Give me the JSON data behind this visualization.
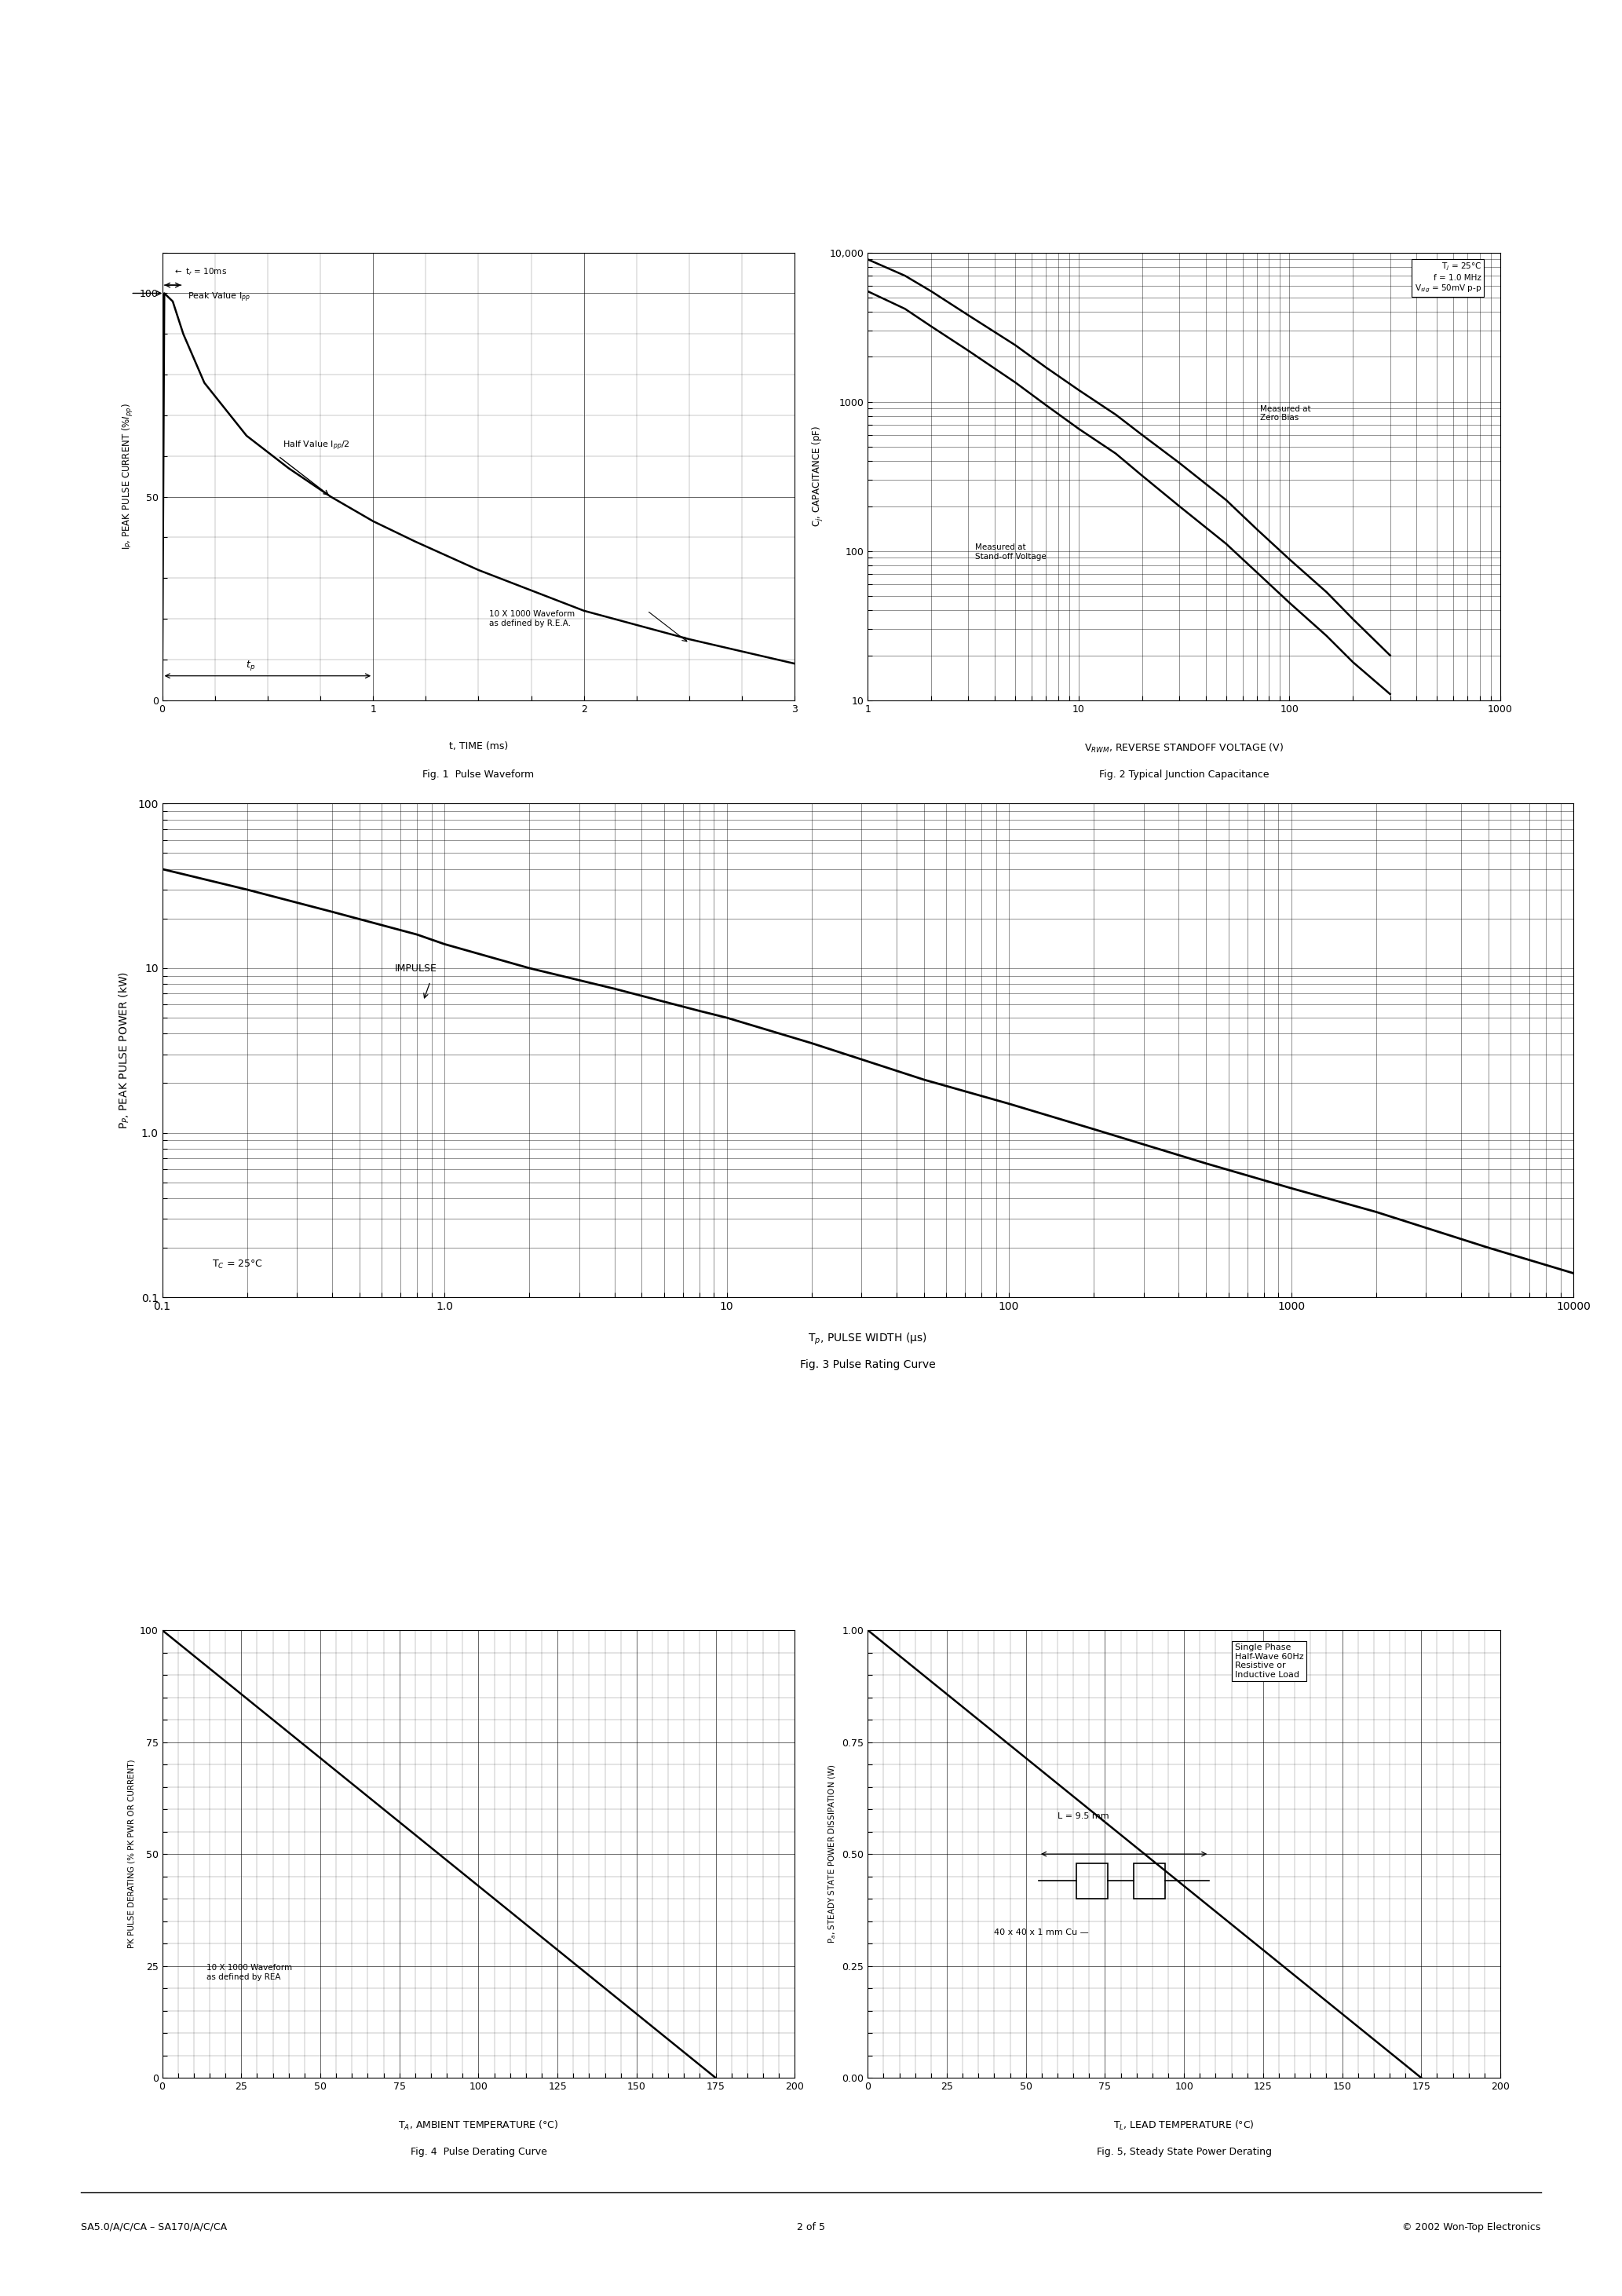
{
  "page_title_left": "SA5.0/A/C/CA – SA170/A/C/CA",
  "page_title_center": "2 of 5",
  "page_title_right": "© 2002 Won-Top Electronics",
  "fig1": {
    "caption1": "t, TIME (ms)",
    "caption2": "Fig. 1  Pulse Waveform",
    "ylabel": "I$_P$, PEAK PULSE CURRENT (%$I_{pp}$)",
    "xlim": [
      0,
      3
    ],
    "ylim": [
      0,
      110
    ],
    "xticks": [
      0,
      1,
      2,
      3
    ],
    "yticks": [
      0,
      50,
      100
    ],
    "curve_x": [
      0.0,
      0.01,
      0.05,
      0.1,
      0.2,
      0.4,
      0.6,
      0.8,
      1.0,
      1.2,
      1.5,
      2.0,
      2.5,
      3.0
    ],
    "curve_y": [
      0,
      100,
      98,
      90,
      78,
      65,
      57,
      50,
      44,
      39,
      32,
      22,
      15,
      9
    ]
  },
  "fig2": {
    "caption1": "V$_{RWM}$, REVERSE STANDOFF VOLTAGE (V)",
    "caption2": "Fig. 2 Typical Junction Capacitance",
    "ylabel": "C$_j$, CAPACITANCE (pF)",
    "curve1_x": [
      1,
      1.5,
      2,
      3,
      5,
      7,
      10,
      15,
      20,
      30,
      50,
      70,
      100,
      150,
      200,
      300
    ],
    "curve1_y": [
      9000,
      7000,
      5500,
      3800,
      2400,
      1700,
      1200,
      820,
      600,
      390,
      220,
      140,
      88,
      53,
      35,
      20
    ],
    "curve2_x": [
      1,
      1.5,
      2,
      3,
      5,
      7,
      10,
      15,
      20,
      30,
      50,
      70,
      100,
      150,
      200,
      300
    ],
    "curve2_y": [
      5500,
      4200,
      3200,
      2200,
      1350,
      950,
      660,
      450,
      320,
      200,
      112,
      72,
      45,
      27,
      18,
      11
    ],
    "legend": "T$_j$ = 25°C\nf = 1.0 MHz\nV$_{sig}$ = 50mV p-p",
    "ann1_text": "Measured at\nZero Bias",
    "ann1_x": 0.62,
    "ann1_y": 0.66,
    "ann2_text": "Measured at\nStand-off Voltage",
    "ann2_x": 0.17,
    "ann2_y": 0.35
  },
  "fig3": {
    "caption1": "T$_p$, PULSE WIDTH (μs)",
    "caption2": "Fig. 3 Pulse Rating Curve",
    "ylabel": "P$_P$, PEAK PULSE POWER (kW)",
    "curve_x": [
      0.1,
      0.2,
      0.4,
      0.8,
      1.0,
      2,
      4,
      8,
      10,
      20,
      50,
      100,
      200,
      500,
      1000,
      2000,
      5000,
      10000
    ],
    "curve_y": [
      40,
      30,
      22,
      16,
      14,
      10,
      7.5,
      5.5,
      5.0,
      3.5,
      2.1,
      1.5,
      1.05,
      0.65,
      0.46,
      0.33,
      0.2,
      0.14
    ],
    "ann_tc": "T$_C$ = 25°C",
    "ann_impulse": "IMPULSE"
  },
  "fig4": {
    "caption1": "T$_A$, AMBIENT TEMPERATURE (°C)",
    "caption2": "Fig. 4  Pulse Derating Curve",
    "ylabel": "PK PULSE DERATING (% PK PWR OR CURRENT)",
    "xlim": [
      0,
      200
    ],
    "ylim": [
      0,
      100
    ],
    "xticks": [
      0,
      25,
      50,
      75,
      100,
      125,
      150,
      175,
      200
    ],
    "yticks": [
      0,
      25,
      50,
      75,
      100
    ],
    "curve_x": [
      0,
      175
    ],
    "curve_y": [
      100,
      0
    ],
    "ann_text": "10 X 1000 Waveform\nas defined by REA"
  },
  "fig5": {
    "caption1": "T$_L$, LEAD TEMPERATURE (°C)",
    "caption2": "Fig. 5, Steady State Power Derating",
    "ylabel": "P$_a$, STEADY STATE POWER DISSIPATION (W)",
    "xlim": [
      0,
      200
    ],
    "ylim": [
      0,
      1.0
    ],
    "xticks": [
      0,
      25,
      50,
      75,
      100,
      125,
      150,
      175,
      200
    ],
    "yticks": [
      0,
      0.25,
      0.5,
      0.75,
      1.0
    ],
    "curve_x": [
      0,
      175
    ],
    "curve_y": [
      1.0,
      0
    ],
    "ann_legend": "Single Phase\nHalf-Wave 60Hz\nResistive or\nInductive Load",
    "ann_l": "L = 9.5 mm",
    "ann_cu": "40 x 40 x 1 mm Cu —"
  }
}
